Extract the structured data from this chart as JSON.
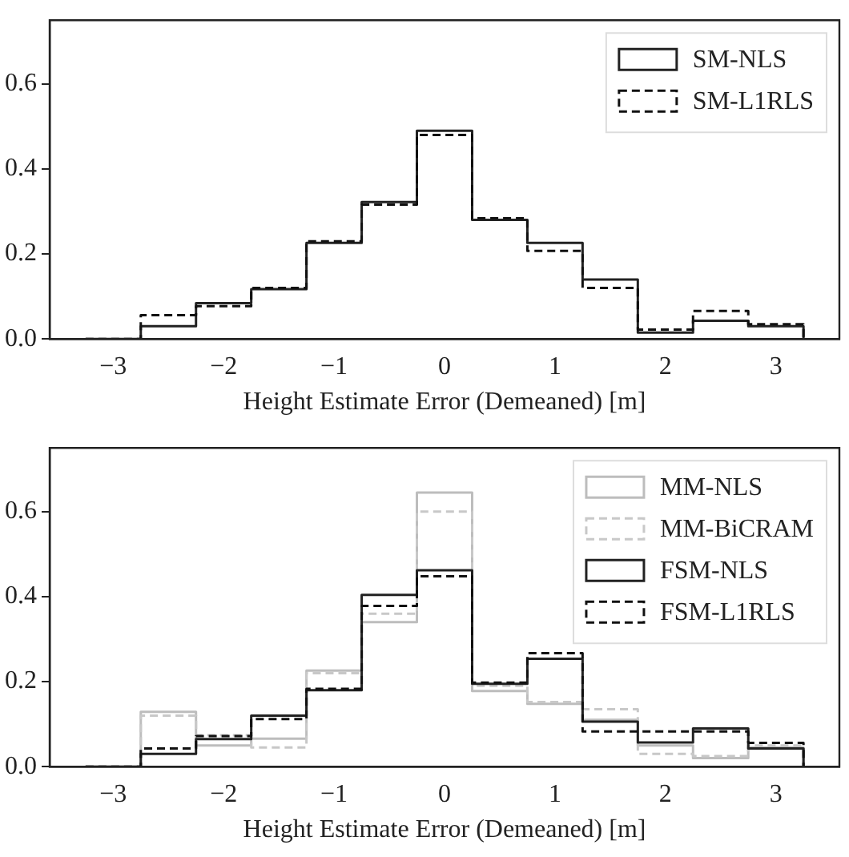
{
  "chart_data": [
    {
      "type": "histogram",
      "xlabel": "Height Estimate Error (Demeaned) [m]",
      "bins": [
        -3.25,
        -2.75,
        -2.25,
        -1.75,
        -1.25,
        -0.75,
        -0.25,
        0.25,
        0.75,
        1.25,
        1.75,
        2.25,
        2.75,
        3.25
      ],
      "series": [
        {
          "name": "SM-NLS",
          "color": "#222222",
          "line_style": "solid",
          "values": [
            0,
            0.03,
            0.084,
            0.117,
            0.226,
            0.322,
            0.49,
            0.28,
            0.226,
            0.14,
            0.015,
            0.043,
            0.03
          ]
        },
        {
          "name": "SM-L1RLS",
          "color": "#111111",
          "line_style": "dashed",
          "values": [
            0,
            0.056,
            0.077,
            0.12,
            0.23,
            0.316,
            0.48,
            0.284,
            0.207,
            0.12,
            0.022,
            0.066,
            0.035
          ]
        }
      ],
      "xlim": [
        -3.575,
        3.575
      ],
      "xticks": [
        -3,
        -2,
        -1,
        0,
        1,
        2,
        3
      ],
      "ylim": [
        0,
        0.75
      ],
      "yticks": [
        {
          "value": 0,
          "label": "0.0"
        },
        {
          "value": 0.2,
          "label": "0.2"
        },
        {
          "value": 0.4,
          "label": "0.4"
        },
        {
          "value": 0.6,
          "label": "0.6"
        }
      ],
      "grid": false,
      "legend": "top right"
    },
    {
      "type": "histogram",
      "xlabel": "Height Estimate Error (Demeaned) [m]",
      "bins": [
        -3.25,
        -2.75,
        -2.25,
        -1.75,
        -1.25,
        -0.75,
        -0.25,
        0.25,
        0.75,
        1.25,
        1.75,
        2.25,
        2.75,
        3.25
      ],
      "series": [
        {
          "name": "MM-NLS",
          "color": "#bdbdbd",
          "line_style": "solid",
          "values": [
            0,
            0.129,
            0.05,
            0.066,
            0.226,
            0.34,
            0.645,
            0.178,
            0.148,
            0.11,
            0.05,
            0.02,
            0.045
          ]
        },
        {
          "name": "MM-BiCRAM",
          "color": "#c8c8c8",
          "line_style": "dashed",
          "values": [
            0,
            0.12,
            0.074,
            0.045,
            0.22,
            0.36,
            0.6,
            0.19,
            0.152,
            0.135,
            0.03,
            0.025,
            0.05
          ]
        },
        {
          "name": "FSM-NLS",
          "color": "#222222",
          "line_style": "solid",
          "values": [
            0,
            0.03,
            0.065,
            0.12,
            0.18,
            0.404,
            0.462,
            0.195,
            0.254,
            0.106,
            0.057,
            0.09,
            0.043
          ]
        },
        {
          "name": "FSM-L1RLS",
          "color": "#111111",
          "line_style": "dashed",
          "values": [
            0,
            0.043,
            0.072,
            0.112,
            0.183,
            0.378,
            0.448,
            0.198,
            0.267,
            0.083,
            0.083,
            0.083,
            0.056
          ]
        }
      ],
      "xlim": [
        -3.575,
        3.575
      ],
      "xticks": [
        -3,
        -2,
        -1,
        0,
        1,
        2,
        3
      ],
      "ylim": [
        0,
        0.75
      ],
      "yticks": [
        {
          "value": 0,
          "label": "0.0"
        },
        {
          "value": 0.2,
          "label": "0.2"
        },
        {
          "value": 0.4,
          "label": "0.4"
        },
        {
          "value": 0.6,
          "label": "0.6"
        }
      ],
      "grid": false,
      "legend": "top right"
    }
  ]
}
